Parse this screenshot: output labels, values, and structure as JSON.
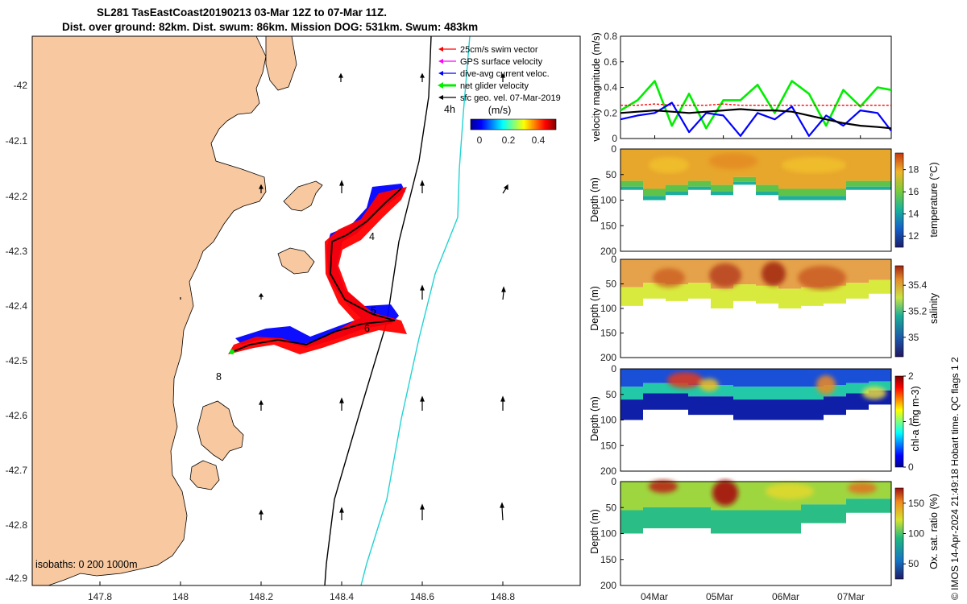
{
  "header": {
    "title_line1": "SL281 TasEastCoast20190213 03-Mar 12Z to 07-Mar 11Z.",
    "title_line2": "Dist. over ground: 82km. Dist. swum: 86km. Mission DOG: 531km. Swum: 483km"
  },
  "footer_text": "© IMOS 14-Apr-2024 21:49:18 Hobart time. QC flags 1 2",
  "colors": {
    "land": "#f8c9a0",
    "swim": "#ff0000",
    "gps": "#ff00ff",
    "dive_avg": "#0000ff",
    "net": "#00ee00",
    "sfc_geo": "#000000",
    "isobath_deep": "#22d3d3"
  },
  "map": {
    "lon_ticks": [
      "147.8",
      "148",
      "148.2",
      "148.4",
      "148.6",
      "148.8"
    ],
    "lat_ticks": [
      "-42",
      "-42.1",
      "-42.2",
      "-42.3",
      "-42.4",
      "-42.5",
      "-42.6",
      "-42.7",
      "-42.8",
      "-42.9"
    ],
    "legend": [
      {
        "label": "25cm/s swim vector",
        "color_key": "swim"
      },
      {
        "label": "GPS surface velocity",
        "color_key": "gps"
      },
      {
        "label": "dive-avg current veloc.",
        "color_key": "dive_avg"
      },
      {
        "label": "net glider velocity",
        "color_key": "net"
      },
      {
        "label": "sfc geo. vel. 07-Mar-2019",
        "color_key": "sfc_geo"
      }
    ],
    "colorbar_title": "(m/s)",
    "colorbar_ticks": [
      "0",
      "0.2",
      "0.4"
    ],
    "isobath_label": "isobaths: 0   200  1000m",
    "day_markers": [
      "4h",
      "4",
      "5",
      "6",
      "8"
    ]
  },
  "chart_data": [
    {
      "type": "line",
      "title": "",
      "ylabel": "velocity magnitude (m/s)",
      "ylim": [
        0,
        0.8
      ],
      "yticks": [
        "0",
        "0.2",
        "0.4",
        "0.6",
        "0.8"
      ],
      "x_days": [
        3.5,
        3.75,
        4.0,
        4.25,
        4.5,
        4.75,
        5.0,
        5.25,
        5.5,
        5.75,
        6.0,
        6.25,
        6.5,
        6.75,
        7.0,
        7.25,
        7.45
      ],
      "series": [
        {
          "name": "net glider velocity",
          "color_key": "net",
          "values": [
            0.22,
            0.3,
            0.45,
            0.1,
            0.35,
            0.08,
            0.3,
            0.3,
            0.42,
            0.2,
            0.45,
            0.35,
            0.1,
            0.38,
            0.25,
            0.4,
            0.38
          ]
        },
        {
          "name": "swim speed",
          "color_key": "swim",
          "values": [
            0.26,
            0.26,
            0.27,
            0.26,
            0.26,
            0.26,
            0.27,
            0.26,
            0.26,
            0.26,
            0.26,
            0.26,
            0.26,
            0.26,
            0.26,
            0.26,
            0.26
          ]
        },
        {
          "name": "dive-avg current",
          "color_key": "dive_avg",
          "values": [
            0.15,
            0.18,
            0.2,
            0.28,
            0.05,
            0.2,
            0.18,
            0.02,
            0.2,
            0.15,
            0.25,
            0.02,
            0.18,
            0.1,
            0.22,
            0.2,
            0.06
          ]
        },
        {
          "name": "sfc geo. velocity",
          "color_key": "sfc_geo",
          "values": [
            0.2,
            0.21,
            0.22,
            0.21,
            0.2,
            0.21,
            0.22,
            0.23,
            0.22,
            0.22,
            0.21,
            0.18,
            0.15,
            0.12,
            0.1,
            0.09,
            0.08
          ]
        }
      ]
    },
    {
      "type": "heatmap",
      "ylabel": "Depth (m)",
      "yticks": [
        "0",
        "50",
        "100",
        "150",
        "200"
      ],
      "colorbar_label": "temperature (°C)",
      "colorbar_ticks": [
        "12",
        "14",
        "16",
        "18"
      ],
      "clim": [
        11,
        19.5
      ],
      "bottom_depth_profile": [
        80,
        100,
        90,
        80,
        90,
        70,
        90,
        100,
        100,
        100,
        80,
        80
      ]
    },
    {
      "type": "heatmap",
      "ylabel": "Depth (m)",
      "yticks": [
        "0",
        "50",
        "100",
        "150",
        "200"
      ],
      "colorbar_label": "salinity",
      "colorbar_ticks": [
        "35",
        "35.2",
        "35.4"
      ],
      "clim": [
        34.85,
        35.55
      ],
      "bottom_depth_profile": [
        95,
        80,
        85,
        80,
        100,
        85,
        90,
        100,
        95,
        90,
        80,
        70
      ]
    },
    {
      "type": "heatmap",
      "ylabel": "Depth (m)",
      "yticks": [
        "0",
        "50",
        "100",
        "150",
        "200"
      ],
      "colorbar_label": "chl-a (mg m-3)",
      "colorbar_ticks": [
        "0",
        "1",
        "2"
      ],
      "clim": [
        0,
        2
      ],
      "bottom_depth_profile": [
        100,
        80,
        80,
        90,
        90,
        100,
        100,
        100,
        100,
        90,
        80,
        70
      ]
    },
    {
      "type": "heatmap",
      "ylabel": "Depth (m)",
      "yticks": [
        "0",
        "50",
        "100",
        "150",
        "200"
      ],
      "colorbar_label": "Ox. sat. ratio (%)",
      "colorbar_ticks": [
        "50",
        "100",
        "150"
      ],
      "clim": [
        25,
        175
      ],
      "x_tick_labels": [
        "04Mar",
        "05Mar",
        "06Mar",
        "07Mar"
      ],
      "bottom_depth_profile": [
        100,
        90,
        90,
        90,
        100,
        100,
        100,
        100,
        80,
        80,
        60,
        60
      ]
    }
  ]
}
